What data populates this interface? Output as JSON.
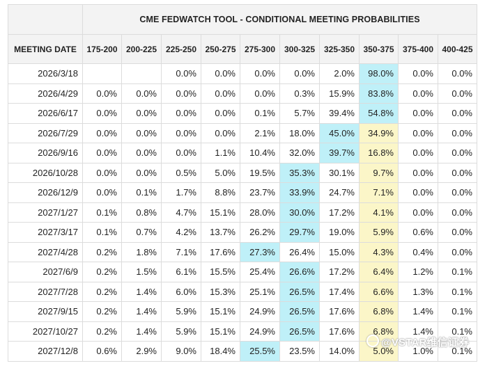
{
  "title": "CME FEDWATCH TOOL - CONDITIONAL MEETING PROBABILITIES",
  "column_header_first": "MEETING DATE",
  "rate_ranges": [
    "175-200",
    "200-225",
    "225-250",
    "250-275",
    "275-300",
    "300-325",
    "325-350",
    "350-375",
    "375-400",
    "400-425"
  ],
  "current_range_index": 7,
  "rows": [
    {
      "date": "2026/3/18",
      "values": [
        "",
        "",
        "0.0%",
        "0.0%",
        "0.0%",
        "0.0%",
        "2.0%",
        "98.0%",
        "0.0%",
        "0.0%"
      ],
      "max_index": 7
    },
    {
      "date": "2026/4/29",
      "values": [
        "0.0%",
        "0.0%",
        "0.0%",
        "0.0%",
        "0.0%",
        "0.3%",
        "15.9%",
        "83.8%",
        "0.0%",
        "0.0%"
      ],
      "max_index": 7
    },
    {
      "date": "2026/6/17",
      "values": [
        "0.0%",
        "0.0%",
        "0.0%",
        "0.0%",
        "0.1%",
        "5.7%",
        "39.4%",
        "54.8%",
        "0.0%",
        "0.0%"
      ],
      "max_index": 7
    },
    {
      "date": "2026/7/29",
      "values": [
        "0.0%",
        "0.0%",
        "0.0%",
        "0.0%",
        "2.1%",
        "18.0%",
        "45.0%",
        "34.9%",
        "0.0%",
        "0.0%"
      ],
      "max_index": 6
    },
    {
      "date": "2026/9/16",
      "values": [
        "0.0%",
        "0.0%",
        "0.0%",
        "1.1%",
        "10.4%",
        "32.0%",
        "39.7%",
        "16.8%",
        "0.0%",
        "0.0%"
      ],
      "max_index": 6
    },
    {
      "date": "2026/10/28",
      "values": [
        "0.0%",
        "0.0%",
        "0.5%",
        "5.0%",
        "19.5%",
        "35.3%",
        "30.1%",
        "9.7%",
        "0.0%",
        "0.0%"
      ],
      "max_index": 5
    },
    {
      "date": "2026/12/9",
      "values": [
        "0.0%",
        "0.1%",
        "1.7%",
        "8.8%",
        "23.7%",
        "33.9%",
        "24.7%",
        "7.1%",
        "0.0%",
        "0.0%"
      ],
      "max_index": 5
    },
    {
      "date": "2027/1/27",
      "values": [
        "0.1%",
        "0.8%",
        "4.7%",
        "15.1%",
        "28.0%",
        "30.0%",
        "17.2%",
        "4.1%",
        "0.0%",
        "0.0%"
      ],
      "max_index": 5
    },
    {
      "date": "2027/3/17",
      "values": [
        "0.1%",
        "0.7%",
        "4.2%",
        "13.7%",
        "26.2%",
        "29.7%",
        "19.0%",
        "5.9%",
        "0.6%",
        "0.0%"
      ],
      "max_index": 5
    },
    {
      "date": "2027/4/28",
      "values": [
        "0.2%",
        "1.8%",
        "7.1%",
        "17.6%",
        "27.3%",
        "26.4%",
        "15.0%",
        "4.3%",
        "0.4%",
        "0.0%"
      ],
      "max_index": 4
    },
    {
      "date": "2027/6/9",
      "values": [
        "0.2%",
        "1.5%",
        "6.1%",
        "15.5%",
        "25.4%",
        "26.6%",
        "17.2%",
        "6.4%",
        "1.2%",
        "0.1%"
      ],
      "max_index": 5
    },
    {
      "date": "2027/7/28",
      "values": [
        "0.2%",
        "1.4%",
        "6.0%",
        "15.3%",
        "25.1%",
        "26.5%",
        "17.4%",
        "6.6%",
        "1.3%",
        "0.1%"
      ],
      "max_index": 5
    },
    {
      "date": "2027/9/15",
      "values": [
        "0.2%",
        "1.4%",
        "5.9%",
        "15.1%",
        "24.9%",
        "26.5%",
        "17.6%",
        "6.8%",
        "1.4%",
        "0.1%"
      ],
      "max_index": 5
    },
    {
      "date": "2027/10/27",
      "values": [
        "0.2%",
        "1.4%",
        "5.9%",
        "15.1%",
        "24.9%",
        "26.5%",
        "17.6%",
        "6.8%",
        "1.4%",
        "0.1%"
      ],
      "max_index": 5
    },
    {
      "date": "2027/12/8",
      "values": [
        "0.6%",
        "2.9%",
        "9.0%",
        "18.4%",
        "25.5%",
        "23.5%",
        "14.0%",
        "5.0%",
        "1.0%",
        "0.1%"
      ],
      "max_index": 4
    }
  ],
  "colors": {
    "current_range": "#fbf6c8",
    "max_probability": "#bff0f8",
    "header_bg": "#f3f3f3",
    "border": "#dcdcdc"
  },
  "watermark": "@VSTAR维信证券"
}
